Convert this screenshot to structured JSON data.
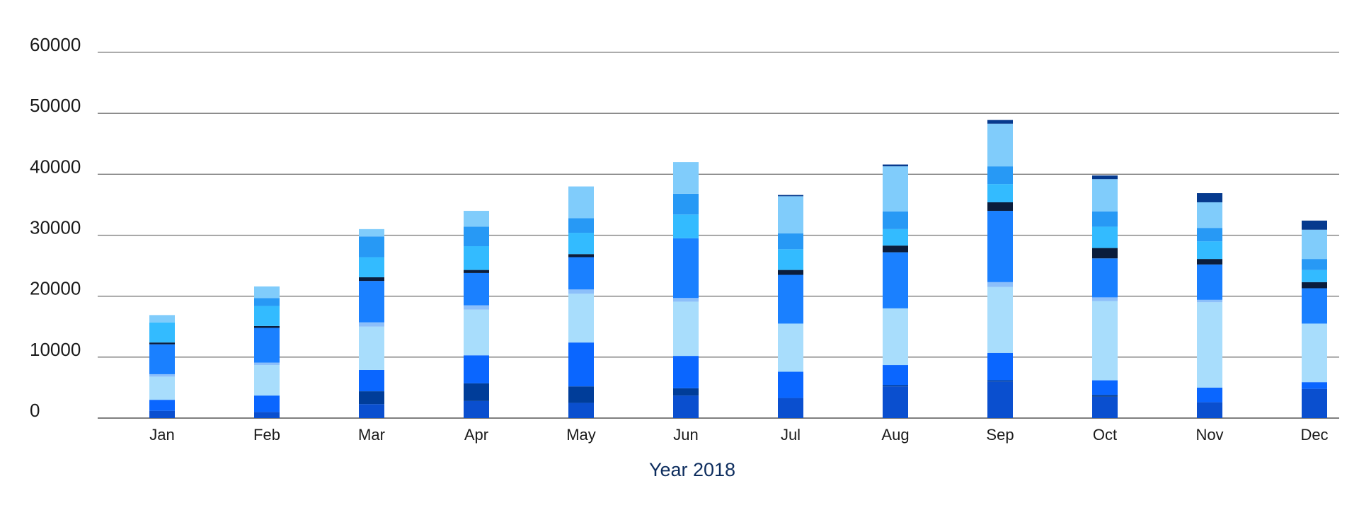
{
  "chart_data": {
    "type": "bar",
    "stacked": true,
    "xlabel": "Year 2018",
    "ylabel": "",
    "ylim": [
      0,
      60000
    ],
    "yticks": [
      "0",
      "10000",
      "20000",
      "30000",
      "40000",
      "50000",
      "60000"
    ],
    "grid": true,
    "categories": [
      "Jan",
      "Feb",
      "Mar",
      "Apr",
      "May",
      "Jun",
      "Jul",
      "Aug",
      "Sep",
      "Oct",
      "Nov",
      "Dec"
    ],
    "series": [
      {
        "color": "#0a4fcf",
        "values": [
          1200,
          1000,
          2300,
          2800,
          2500,
          3700,
          3300,
          5200,
          6000,
          3500,
          2600,
          4800
        ]
      },
      {
        "color": "#003d99",
        "values": [
          0,
          0,
          2100,
          2900,
          2700,
          1200,
          0,
          200,
          200,
          300,
          0,
          0
        ]
      },
      {
        "color": "#0a66ff",
        "values": [
          1800,
          2700,
          3500,
          4600,
          7200,
          5300,
          4300,
          3300,
          4500,
          2400,
          2400,
          1100
        ]
      },
      {
        "color": "#a8ddfc",
        "values": [
          3800,
          5000,
          7100,
          7500,
          8000,
          8900,
          7900,
          9300,
          10800,
          13000,
          14000,
          9600
        ]
      },
      {
        "color": "#8cbffa",
        "values": [
          400,
          400,
          700,
          700,
          700,
          600,
          0,
          0,
          800,
          600,
          400,
          0
        ]
      },
      {
        "color": "#1a80ff",
        "values": [
          4900,
          5700,
          6800,
          5300,
          5300,
          9800,
          8000,
          9200,
          11700,
          6400,
          5800,
          5800
        ]
      },
      {
        "color": "#0b1d3c",
        "values": [
          300,
          300,
          600,
          500,
          500,
          0,
          800,
          1100,
          1400,
          1700,
          900,
          1000
        ]
      },
      {
        "color": "#33bbff",
        "values": [
          3300,
          3300,
          3300,
          3900,
          3500,
          3900,
          3400,
          2700,
          3000,
          3500,
          2900,
          2000
        ]
      },
      {
        "color": "#2799f5",
        "values": [
          0,
          1300,
          3400,
          3200,
          2400,
          3400,
          2600,
          2900,
          2900,
          2500,
          2200,
          1800
        ]
      },
      {
        "color": "#80ccfb",
        "values": [
          1200,
          1900,
          1200,
          2600,
          5200,
          5200,
          6100,
          7400,
          7000,
          5300,
          4200,
          4800
        ]
      },
      {
        "color": "#063a8e",
        "values": [
          0,
          0,
          0,
          0,
          0,
          0,
          200,
          300,
          600,
          600,
          1500,
          1500
        ]
      }
    ]
  }
}
